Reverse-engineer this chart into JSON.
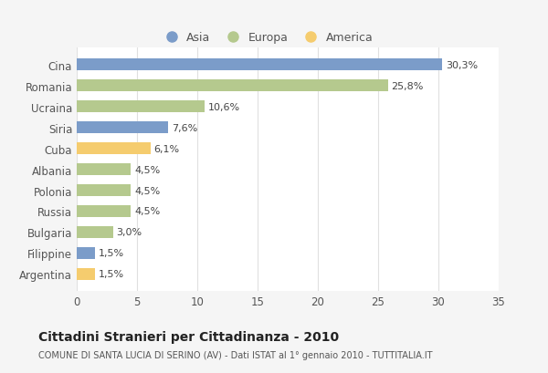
{
  "countries": [
    "Cina",
    "Romania",
    "Ucraina",
    "Siria",
    "Cuba",
    "Albania",
    "Polonia",
    "Russia",
    "Bulgaria",
    "Filippine",
    "Argentina"
  ],
  "values": [
    30.3,
    25.8,
    10.6,
    7.6,
    6.1,
    4.5,
    4.5,
    4.5,
    3.0,
    1.5,
    1.5
  ],
  "labels": [
    "30,3%",
    "25,8%",
    "10,6%",
    "7,6%",
    "6,1%",
    "4,5%",
    "4,5%",
    "4,5%",
    "3,0%",
    "1,5%",
    "1,5%"
  ],
  "continents": [
    "Asia",
    "Europa",
    "Europa",
    "Asia",
    "America",
    "Europa",
    "Europa",
    "Europa",
    "Europa",
    "Asia",
    "America"
  ],
  "colors": {
    "Asia": "#7b9cc9",
    "Europa": "#b5c98e",
    "America": "#f5cc6e"
  },
  "legend_labels": [
    "Asia",
    "Europa",
    "America"
  ],
  "legend_colors": [
    "#7b9cc9",
    "#b5c98e",
    "#f5cc6e"
  ],
  "title": "Cittadini Stranieri per Cittadinanza - 2010",
  "subtitle": "COMUNE DI SANTA LUCIA DI SERINO (AV) - Dati ISTAT al 1° gennaio 2010 - TUTTITALIA.IT",
  "xlim": [
    0,
    35
  ],
  "xticks": [
    0,
    5,
    10,
    15,
    20,
    25,
    30,
    35
  ],
  "fig_bg_color": "#f5f5f5",
  "plot_bg_color": "#ffffff",
  "grid_color": "#e0e0e0",
  "bar_height": 0.55
}
